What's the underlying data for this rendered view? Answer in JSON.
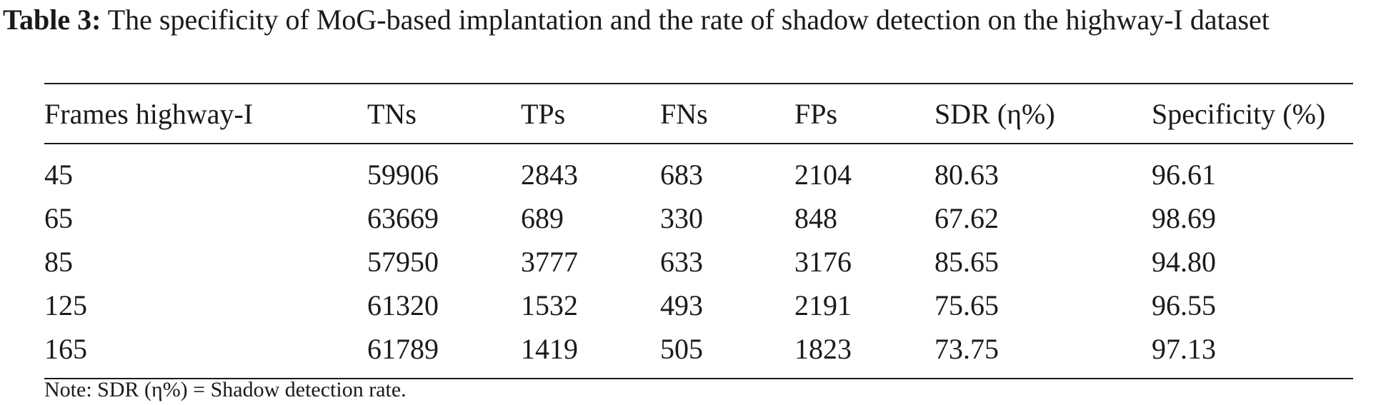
{
  "caption": {
    "label": "Table 3:",
    "text": "The specificity of MoG-based implantation and the rate of shadow detection on the highway-I dataset"
  },
  "table": {
    "headers": [
      "Frames highway-I",
      "TNs",
      "TPs",
      "FNs",
      "FPs",
      "SDR (η%)",
      "Specificity (%)"
    ],
    "rows": [
      [
        "45",
        "59906",
        "2843",
        "683",
        "2104",
        "80.63",
        "96.61"
      ],
      [
        "65",
        "63669",
        "689",
        "330",
        "848",
        "67.62",
        "98.69"
      ],
      [
        "85",
        "57950",
        "3777",
        "633",
        "3176",
        "85.65",
        "94.80"
      ],
      [
        "125",
        "61320",
        "1532",
        "493",
        "2191",
        "75.65",
        "96.55"
      ],
      [
        "165",
        "61789",
        "1419",
        "505",
        "1823",
        "73.75",
        "97.13"
      ]
    ]
  },
  "note": "Note: SDR (η%) = Shadow detection rate."
}
